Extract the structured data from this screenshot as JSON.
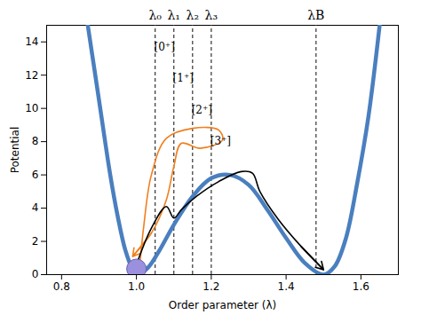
{
  "chart_data": {
    "type": "line",
    "xlabel": "Order parameter (λ)",
    "ylabel": "Potential",
    "xlim": [
      0.76,
      1.7
    ],
    "ylim": [
      0,
      15
    ],
    "xticks": [
      0.8,
      {
        "value": 1,
        "label": "1.0"
      },
      1.2,
      1.4,
      1.6
    ],
    "yticks": [
      0,
      2,
      4,
      6,
      8,
      10,
      12,
      14
    ],
    "grid": false,
    "curve": {
      "x": [
        0.87,
        0.9,
        0.93,
        0.95,
        0.97,
        0.99,
        1.0,
        1.03,
        1.06,
        1.1,
        1.15,
        1.2,
        1.25,
        1.3,
        1.35,
        1.4,
        1.45,
        1.5,
        1.53,
        1.56,
        1.59,
        1.62,
        1.65
      ],
      "y": [
        15,
        10.5,
        6,
        3.5,
        1.5,
        0.3,
        0,
        0.4,
        1.4,
        3,
        4.7,
        5.8,
        6.0,
        5.4,
        3.9,
        2.2,
        0.7,
        0,
        0.5,
        2.2,
        5.5,
        9.5,
        15
      ],
      "color": "#4a7fbf"
    },
    "paths": [
      {
        "x": [
          1.01,
          1.02,
          1.04,
          1.08,
          1.15,
          1.22,
          1.23,
          1.17,
          1.12,
          1.1,
          1.08,
          1.04,
          0.99
        ],
        "y": [
          0.8,
          3,
          6,
          8.2,
          8.8,
          8.7,
          8.1,
          7.6,
          7.9,
          6.5,
          4.5,
          2.5,
          1.1
        ],
        "color": "#f07f1f"
      },
      {
        "x": [
          1.0,
          1.04,
          1.08,
          1.1,
          1.12,
          1.16,
          1.22,
          1.28,
          1.31,
          1.33,
          1.38,
          1.44,
          1.5
        ],
        "y": [
          0.6,
          2.8,
          4.1,
          3.4,
          3.9,
          4.7,
          5.6,
          6.2,
          6.1,
          5.0,
          3.3,
          1.7,
          0.3
        ],
        "color": "#000000"
      }
    ],
    "ball": {
      "x": 1.0,
      "y": 0.35,
      "color": "#9a90dd",
      "marker": "circle"
    },
    "vlines": [
      {
        "value": 1.05,
        "label": "λ₀"
      },
      {
        "value": 1.1,
        "label": "λ₁"
      },
      {
        "value": 1.15,
        "label": "λ₂"
      },
      {
        "value": 1.2,
        "label": "λ₃"
      },
      {
        "value": 1.48,
        "label": "λB"
      }
    ],
    "annotations": [
      {
        "text": "[0⁺]",
        "x": 1.075,
        "y": 13.7
      },
      {
        "text": "[1⁺]",
        "x": 1.125,
        "y": 11.8
      },
      {
        "text": "[2⁺]",
        "x": 1.175,
        "y": 9.9
      },
      {
        "text": "[3⁺]",
        "x": 1.225,
        "y": 8.0
      }
    ]
  }
}
